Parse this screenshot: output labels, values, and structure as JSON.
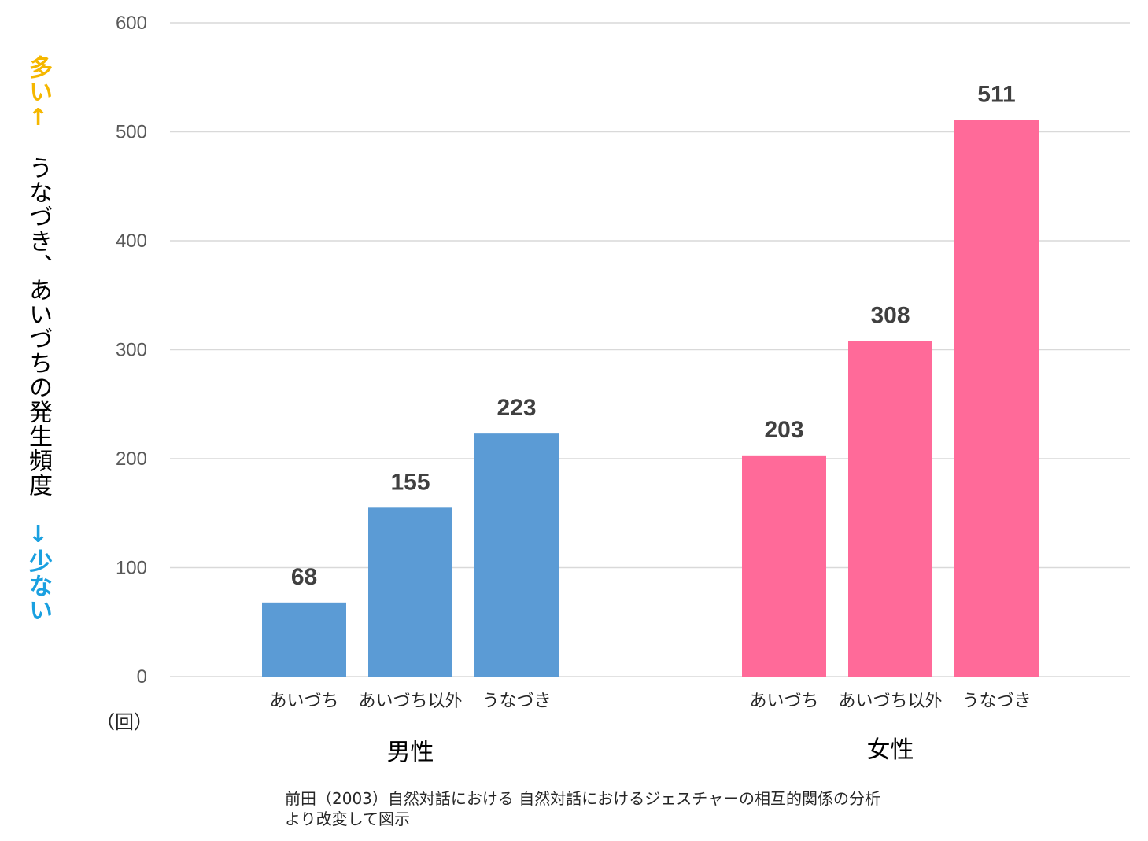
{
  "chart_data": {
    "type": "bar",
    "ylim": [
      0,
      600
    ],
    "yticks": [
      0,
      100,
      200,
      300,
      400,
      500,
      600
    ],
    "y_unit": "（回）",
    "grid": true,
    "groups": [
      {
        "name": "男性",
        "color": "#5B9BD5",
        "categories": [
          "あいづち",
          "あいづち以外",
          "うなづき"
        ],
        "values": [
          68,
          155,
          223
        ]
      },
      {
        "name": "女性",
        "color": "#FF6A99",
        "categories": [
          "あいづち",
          "あいづち以外",
          "うなづき"
        ],
        "values": [
          203,
          308,
          511
        ]
      }
    ]
  },
  "y_title": {
    "top": "多い↑",
    "main": "うなづき、あいづちの発生頻度",
    "bottom": "↓少ない",
    "top_color": "#F5B700",
    "bottom_color": "#1AA0E0"
  },
  "source": {
    "line1": "前田（2003）自然対話における 自然対話におけるジェスチャーの相互的関係の分析",
    "line2": "より改変して図示"
  }
}
